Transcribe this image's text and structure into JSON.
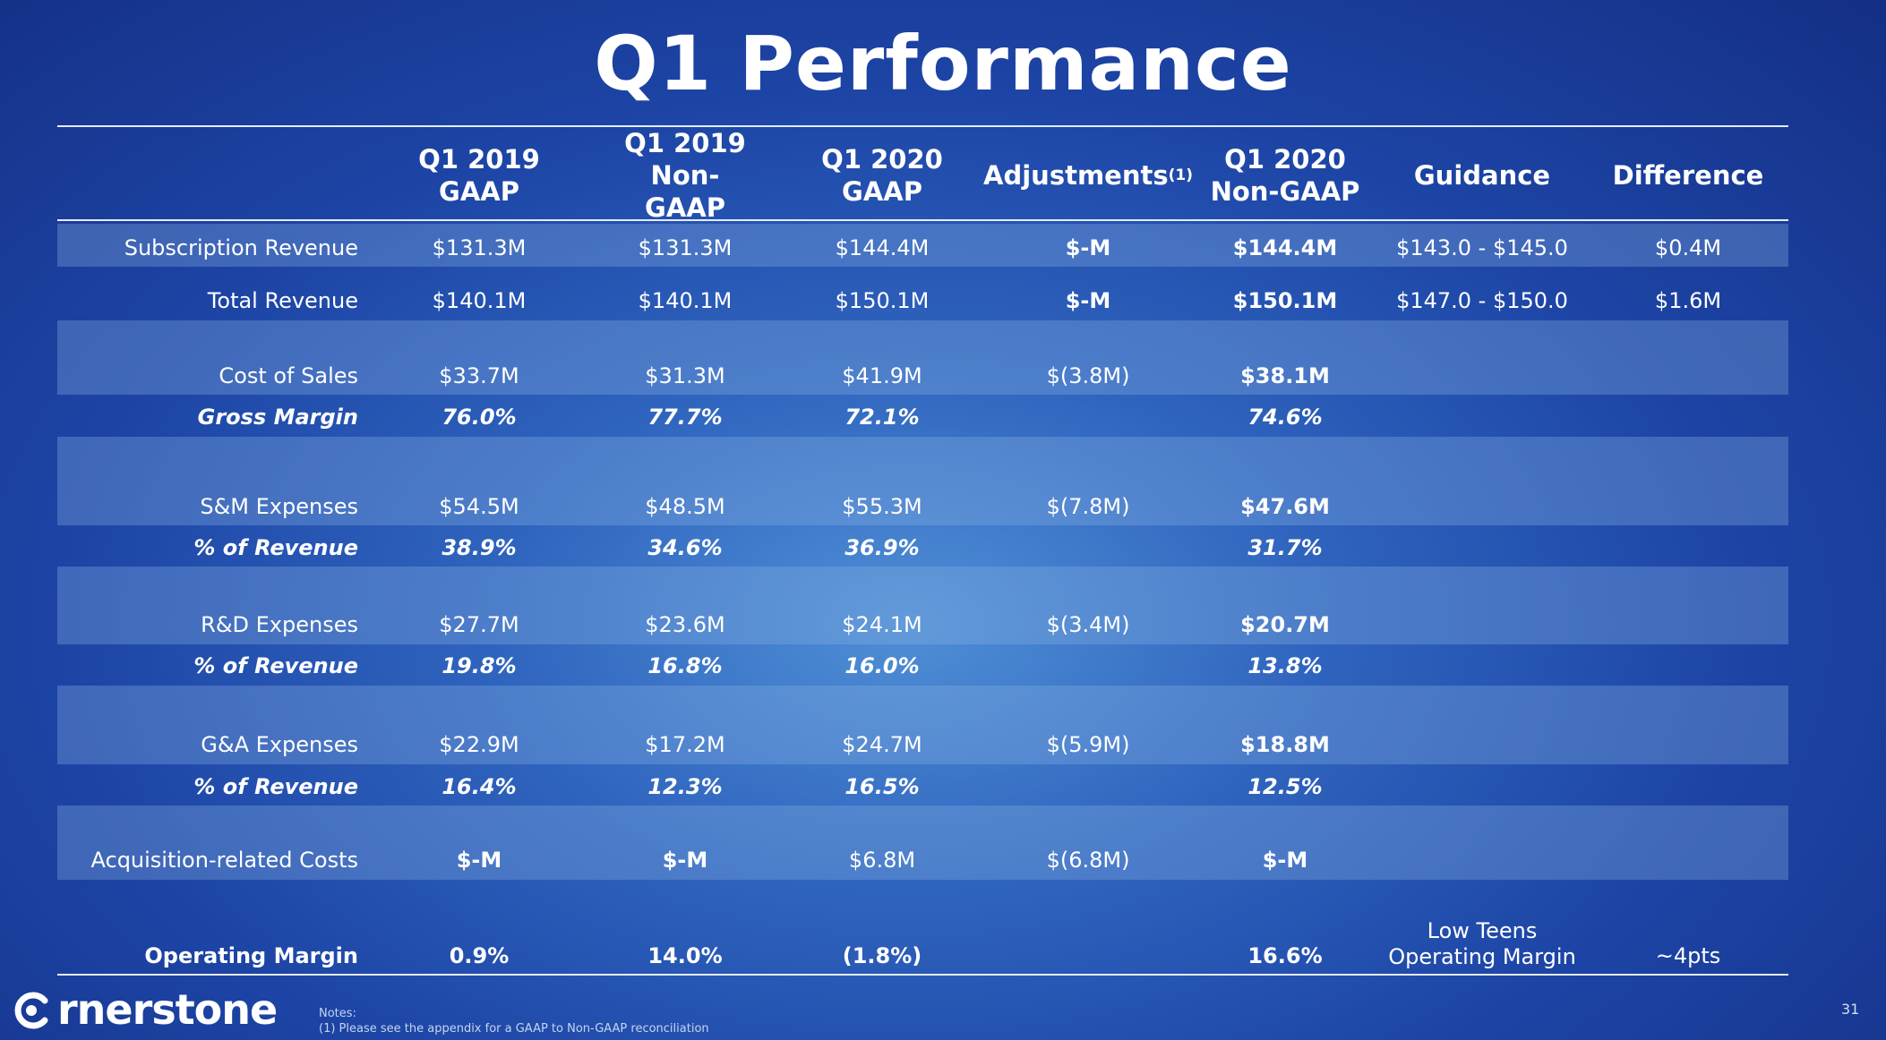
{
  "title": "Q1 Performance",
  "headers": {
    "h1": "Q1 2019\nGAAP",
    "h2": "Q1 2019 Non-\nGAAP",
    "h3": "Q1 2020\nGAAP",
    "h4": "Adjustments",
    "h4_sup": "(1)",
    "h5": "Q1 2020\nNon-GAAP",
    "h6": "Guidance",
    "h7": "Difference"
  },
  "rows": {
    "subscription_revenue": {
      "label": "Subscription Revenue",
      "q1_2019_gaap": "$131.3M",
      "q1_2019_nongaap": "$131.3M",
      "q1_2020_gaap": "$144.4M",
      "adjustments": "$-M",
      "q1_2020_nongaap": "$144.4M",
      "guidance": "$143.0 - $145.0",
      "difference": "$0.4M"
    },
    "total_revenue": {
      "label": "Total Revenue",
      "q1_2019_gaap": "$140.1M",
      "q1_2019_nongaap": "$140.1M",
      "q1_2020_gaap": "$150.1M",
      "adjustments": "$-M",
      "q1_2020_nongaap": "$150.1M",
      "guidance": "$147.0 - $150.0",
      "difference": "$1.6M"
    },
    "cost_of_sales": {
      "label": "Cost of Sales",
      "q1_2019_gaap": "$33.7M",
      "q1_2019_nongaap": "$31.3M",
      "q1_2020_gaap": "$41.9M",
      "adjustments": "$(3.8M)",
      "q1_2020_nongaap": "$38.1M"
    },
    "gross_margin": {
      "label": "Gross Margin",
      "q1_2019_gaap": "76.0%",
      "q1_2019_nongaap": "77.7%",
      "q1_2020_gaap": "72.1%",
      "q1_2020_nongaap": "74.6%"
    },
    "sm_expenses": {
      "label": "S&M Expenses",
      "q1_2019_gaap": "$54.5M",
      "q1_2019_nongaap": "$48.5M",
      "q1_2020_gaap": "$55.3M",
      "adjustments": "$(7.8M)",
      "q1_2020_nongaap": "$47.6M"
    },
    "sm_pct": {
      "label": "% of Revenue",
      "q1_2019_gaap": "38.9%",
      "q1_2019_nongaap": "34.6%",
      "q1_2020_gaap": "36.9%",
      "q1_2020_nongaap": "31.7%"
    },
    "rd_expenses": {
      "label": "R&D Expenses",
      "q1_2019_gaap": "$27.7M",
      "q1_2019_nongaap": "$23.6M",
      "q1_2020_gaap": "$24.1M",
      "adjustments": "$(3.4M)",
      "q1_2020_nongaap": "$20.7M"
    },
    "rd_pct": {
      "label": "% of Revenue",
      "q1_2019_gaap": "19.8%",
      "q1_2019_nongaap": "16.8%",
      "q1_2020_gaap": "16.0%",
      "q1_2020_nongaap": "13.8%"
    },
    "ga_expenses": {
      "label": "G&A Expenses",
      "q1_2019_gaap": "$22.9M",
      "q1_2019_nongaap": "$17.2M",
      "q1_2020_gaap": "$24.7M",
      "adjustments": "$(5.9M)",
      "q1_2020_nongaap": "$18.8M"
    },
    "ga_pct": {
      "label": "% of Revenue",
      "q1_2019_gaap": "16.4%",
      "q1_2019_nongaap": "12.3%",
      "q1_2020_gaap": "16.5%",
      "q1_2020_nongaap": "12.5%"
    },
    "acquisition_costs": {
      "label": "Acquisition-related Costs",
      "q1_2019_gaap": "$-M",
      "q1_2019_nongaap": "$-M",
      "q1_2020_gaap": "$6.8M",
      "adjustments": "$(6.8M)",
      "q1_2020_nongaap": "$-M"
    },
    "operating_margin": {
      "label": "Operating Margin",
      "q1_2019_gaap": "0.9%",
      "q1_2019_nongaap": "14.0%",
      "q1_2020_gaap": "(1.8%)",
      "q1_2020_nongaap": "16.6%",
      "guidance": "Low Teens\nOperating Margin",
      "difference": "~4pts"
    }
  },
  "logo": {
    "text": "rnerstone",
    "icon": "cornerstone-logo-icon"
  },
  "notes": {
    "heading": "Notes:",
    "line1": "(1) Please see the appendix for a GAAP to Non-GAAP reconciliation"
  },
  "page_number": "31"
}
